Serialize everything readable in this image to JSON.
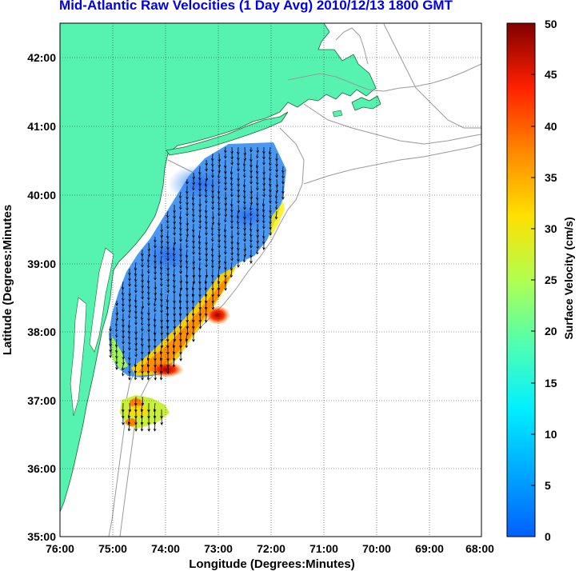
{
  "title": "Mid-Atlantic Raw Velocities (1 Day Avg) 2010/12/13 1800 GMT",
  "map": {
    "x_label": "Longitude (Degrees:Minutes)",
    "y_label": "Latitude (Degrees:Minutes",
    "x_ticks": [
      "76:00",
      "75:00",
      "74:00",
      "73:00",
      "72:00",
      "71:00",
      "70:00",
      "69:00",
      "68:00"
    ],
    "y_ticks": [
      "42:00",
      "41:00",
      "40:00",
      "39:00",
      "38:00",
      "37:00",
      "36:00",
      "35:00"
    ],
    "lon_range": [
      -76,
      -68
    ],
    "lat_range": [
      35,
      42.5
    ],
    "land_color": "#55f2b0",
    "grid": "dotted"
  },
  "colorbar": {
    "label": "Surface Velocity (cm/s)",
    "ticks": [
      "0",
      "5",
      "10",
      "15",
      "20",
      "25",
      "30",
      "35",
      "40",
      "45",
      "50"
    ],
    "range": [
      0,
      50
    ],
    "colormap": "jet"
  }
}
